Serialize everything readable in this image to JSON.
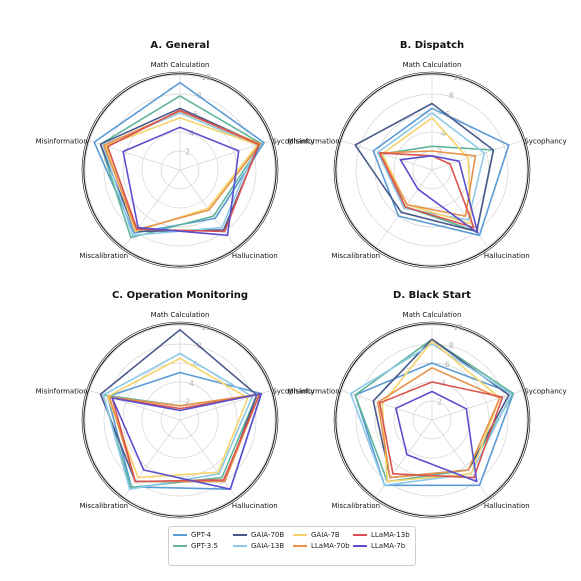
{
  "chart_data": {
    "type": "radar",
    "axes": [
      "Math Calculation",
      "Sycophancy",
      "Hallucination",
      "Miscalibration",
      "Misinformation"
    ],
    "rlim": [
      0,
      10
    ],
    "rticks": [
      "2",
      "4",
      "6",
      "8",
      "10"
    ],
    "grid": true,
    "legend_position": "bottom-center",
    "legend": [
      {
        "name": "GPT-4",
        "color": "#5b9bd5"
      },
      {
        "name": "GPT-3.5",
        "color": "#5fb59a"
      },
      {
        "name": "GAIA-70B",
        "color": "#4a5a8c"
      },
      {
        "name": "GAIA-13B",
        "color": "#8ec9e8"
      },
      {
        "name": "GAIA-7B",
        "color": "#f5d46b"
      },
      {
        "name": "LLaMA-70b",
        "color": "#e8924a"
      },
      {
        "name": "LLaMA-13b",
        "color": "#d9534f"
      },
      {
        "name": "LLaMA-7b",
        "color": "#5a4fcf"
      }
    ],
    "panels": [
      {
        "title": "A. General",
        "series": [
          {
            "name": "GPT-4",
            "values": [
              9.2,
              9.3,
              6.3,
              8.2,
              9.5
            ]
          },
          {
            "name": "GPT-3.5",
            "values": [
              7.8,
              9.0,
              6.0,
              8.8,
              8.8
            ]
          },
          {
            "name": "GAIA-70B",
            "values": [
              6.5,
              8.8,
              7.8,
              8.0,
              8.8
            ]
          },
          {
            "name": "GAIA-13B",
            "values": [
              6.0,
              8.5,
              7.5,
              8.5,
              8.5
            ]
          },
          {
            "name": "GAIA-7B",
            "values": [
              5.5,
              8.6,
              5.0,
              8.0,
              8.2
            ]
          },
          {
            "name": "LLaMA-70b",
            "values": [
              6.2,
              8.9,
              5.2,
              7.8,
              8.4
            ]
          },
          {
            "name": "LLaMA-13b",
            "values": [
              6.3,
              8.7,
              8.0,
              7.7,
              8.0
            ]
          },
          {
            "name": "LLaMA-7b",
            "values": [
              4.5,
              6.5,
              8.5,
              7.5,
              6.3
            ]
          }
        ]
      },
      {
        "title": "B. Dispatch",
        "series": [
          {
            "name": "GPT-4",
            "values": [
              6.5,
              8.5,
              8.5,
              6.0,
              6.5
            ]
          },
          {
            "name": "GPT-3.5",
            "values": [
              2.5,
              6.8,
              8.0,
              4.8,
              5.5
            ]
          },
          {
            "name": "GAIA-70B",
            "values": [
              7.0,
              6.8,
              8.0,
              5.5,
              8.5
            ]
          },
          {
            "name": "GAIA-13B",
            "values": [
              6.0,
              5.8,
              6.5,
              5.0,
              6.0
            ]
          },
          {
            "name": "GAIA-7B",
            "values": [
              5.5,
              4.0,
              7.0,
              4.5,
              5.5
            ]
          },
          {
            "name": "LLaMA-70b",
            "values": [
              2.0,
              4.8,
              6.0,
              4.5,
              5.8
            ]
          },
          {
            "name": "LLaMA-13b",
            "values": [
              1.5,
              2.0,
              7.5,
              4.8,
              5.8
            ]
          },
          {
            "name": "LLaMA-7b",
            "values": [
              1.5,
              3.0,
              8.2,
              2.5,
              3.5
            ]
          }
        ]
      },
      {
        "title": "C. Operation Monitoring",
        "series": [
          {
            "name": "GPT-4",
            "values": [
              5.0,
              9.0,
              9.0,
              8.7,
              8.0
            ]
          },
          {
            "name": "GPT-3.5",
            "values": [
              1.5,
              8.5,
              7.5,
              8.8,
              8.5
            ]
          },
          {
            "name": "GAIA-70B",
            "values": [
              9.5,
              8.5,
              8.0,
              8.0,
              8.8
            ]
          },
          {
            "name": "GAIA-13B",
            "values": [
              7.0,
              8.0,
              7.0,
              9.0,
              8.5
            ]
          },
          {
            "name": "GAIA-7B",
            "values": [
              6.5,
              7.5,
              6.8,
              7.5,
              8.0
            ]
          },
          {
            "name": "LLaMA-70b",
            "values": [
              1.5,
              8.8,
              8.0,
              8.0,
              7.8
            ]
          },
          {
            "name": "LLaMA-13b",
            "values": [
              1.2,
              8.8,
              7.8,
              8.0,
              7.5
            ]
          },
          {
            "name": "LLaMA-7b",
            "values": [
              1.0,
              9.0,
              9.0,
              6.5,
              7.5
            ]
          }
        ]
      },
      {
        "title": "D. Black Start",
        "series": [
          {
            "name": "GPT-4",
            "values": [
              6.0,
              9.0,
              8.5,
              8.5,
              8.5
            ]
          },
          {
            "name": "GPT-3.5",
            "values": [
              8.5,
              9.0,
              6.5,
              8.0,
              8.5
            ]
          },
          {
            "name": "GAIA-70B",
            "values": [
              8.5,
              8.5,
              6.5,
              7.5,
              6.5
            ]
          },
          {
            "name": "GAIA-13B",
            "values": [
              8.0,
              8.8,
              7.0,
              8.5,
              9.0
            ]
          },
          {
            "name": "GAIA-7B",
            "values": [
              8.3,
              7.5,
              7.0,
              8.0,
              5.5
            ]
          },
          {
            "name": "LLaMA-70b",
            "values": [
              5.5,
              7.5,
              6.5,
              7.5,
              6.0
            ]
          },
          {
            "name": "LLaMA-13b",
            "values": [
              4.0,
              7.8,
              7.5,
              7.0,
              5.8
            ]
          },
          {
            "name": "LLaMA-7b",
            "values": [
              3.0,
              3.8,
              8.0,
              4.5,
              4.0
            ]
          }
        ]
      }
    ]
  }
}
